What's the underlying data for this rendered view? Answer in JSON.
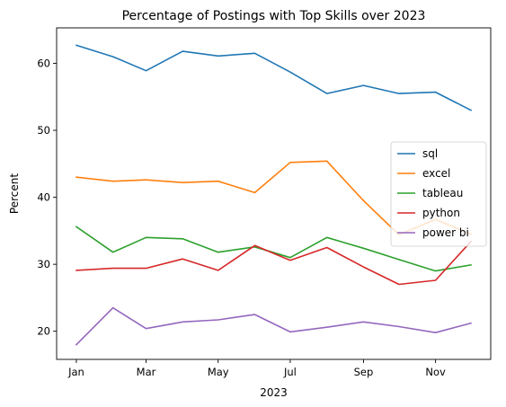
{
  "chart_data": {
    "type": "line",
    "title": "Percentage of Postings with Top Skills over 2023",
    "xlabel": "2023",
    "ylabel": "Percent",
    "x": [
      "2023-01",
      "2023-02",
      "2023-03",
      "2023-04",
      "2023-05",
      "2023-06",
      "2023-07",
      "2023-08",
      "2023-09",
      "2023-10",
      "2023-11",
      "2023-12"
    ],
    "x_ticks": [
      {
        "x": "2023-01",
        "label": "Jan"
      },
      {
        "x": "2023-03",
        "label": "Mar"
      },
      {
        "x": "2023-05",
        "label": "May"
      },
      {
        "x": "2023-07",
        "label": "Jul"
      },
      {
        "x": "2023-09",
        "label": "Sep"
      },
      {
        "x": "2023-11",
        "label": "Nov"
      }
    ],
    "y_ticks": [
      20,
      30,
      40,
      50,
      60
    ],
    "ylim": [
      15.8,
      65.3
    ],
    "grid": false,
    "legend_position": "center-right",
    "series": [
      {
        "name": "sql",
        "color": "#1f77b4",
        "values": [
          62.7,
          61.0,
          58.9,
          61.8,
          61.1,
          61.5,
          58.7,
          55.5,
          56.7,
          55.5,
          55.7,
          53.0
        ]
      },
      {
        "name": "excel",
        "color": "#ff7f0e",
        "values": [
          43.0,
          42.4,
          42.6,
          42.2,
          42.4,
          40.7,
          45.2,
          45.4,
          39.5,
          34.4,
          36.7,
          34.5
        ]
      },
      {
        "name": "tableau",
        "color": "#2ca02c",
        "values": [
          35.6,
          31.8,
          34.0,
          33.8,
          31.8,
          32.6,
          31.0,
          34.0,
          32.4,
          30.7,
          29.0,
          29.9
        ]
      },
      {
        "name": "python",
        "color": "#d62728",
        "values": [
          29.1,
          29.4,
          29.4,
          30.8,
          29.1,
          32.8,
          30.6,
          32.5,
          29.6,
          27.0,
          27.6,
          33.4
        ]
      },
      {
        "name": "power bi",
        "color": "#9467bd",
        "values": [
          18.0,
          23.5,
          20.4,
          21.4,
          21.7,
          22.5,
          19.9,
          20.6,
          21.4,
          20.7,
          19.8,
          21.2
        ]
      }
    ]
  }
}
